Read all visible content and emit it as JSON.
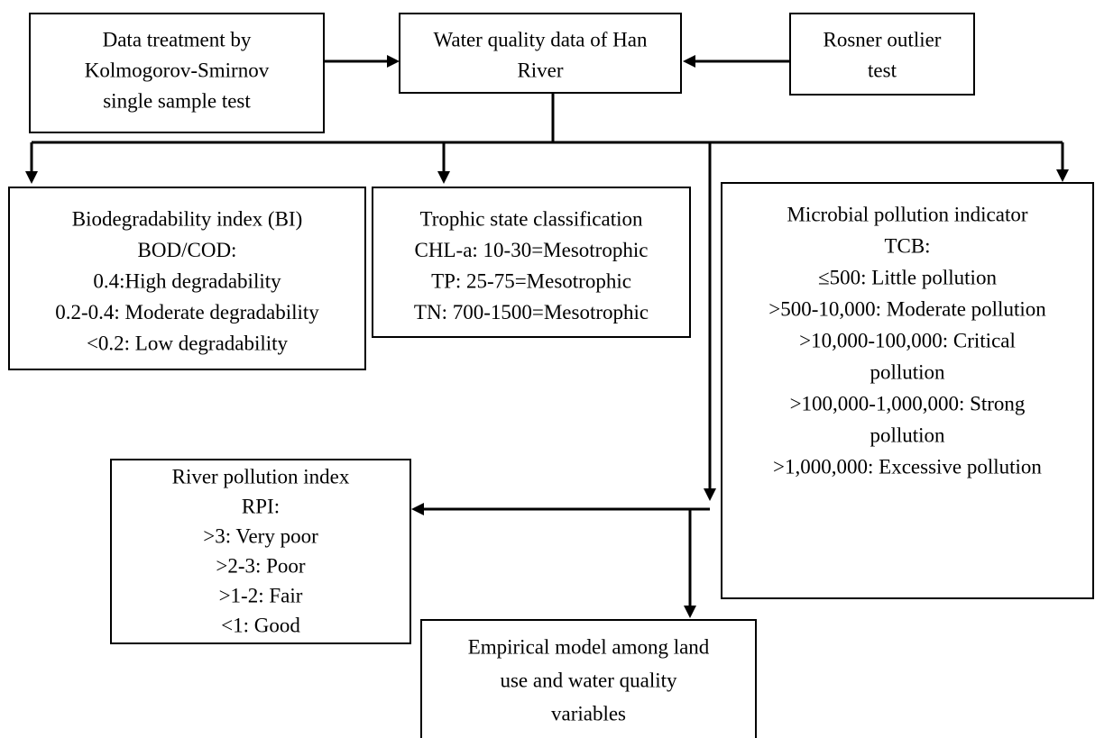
{
  "nodes": [
    {
      "lines": [
        "Data treatment by",
        "Kolmogorov-Smirnov",
        "single sample test"
      ]
    },
    {
      "lines": [
        "Water quality data of Han",
        "River"
      ]
    },
    {
      "lines": [
        "Rosner outlier",
        "test"
      ]
    },
    {
      "lines": [
        "Biodegradability index (BI)",
        "BOD/COD:",
        "0.4:High degradability",
        "0.2-0.4: Moderate degradability",
        "<0.2: Low degradability"
      ]
    },
    {
      "lines": [
        "Trophic state classification",
        "CHL-a: 10-30=Mesotrophic",
        "TP: 25-75=Mesotrophic",
        "TN: 700-1500=Mesotrophic"
      ]
    },
    {
      "lines": [
        "Microbial pollution indicator",
        "TCB:",
        "≤500: Little pollution",
        ">500-10,000: Moderate pollution",
        ">10,000-100,000: Critical",
        "pollution",
        ">100,000-1,000,000: Strong",
        "pollution",
        ">1,000,000: Excessive pollution"
      ]
    },
    {
      "lines": [
        "River pollution index",
        "RPI:",
        ">3: Very poor",
        ">2-3: Poor",
        ">1-2: Fair",
        "<1: Good"
      ]
    },
    {
      "lines": [
        "Empirical model among land",
        "use and water quality",
        "variables"
      ]
    }
  ]
}
